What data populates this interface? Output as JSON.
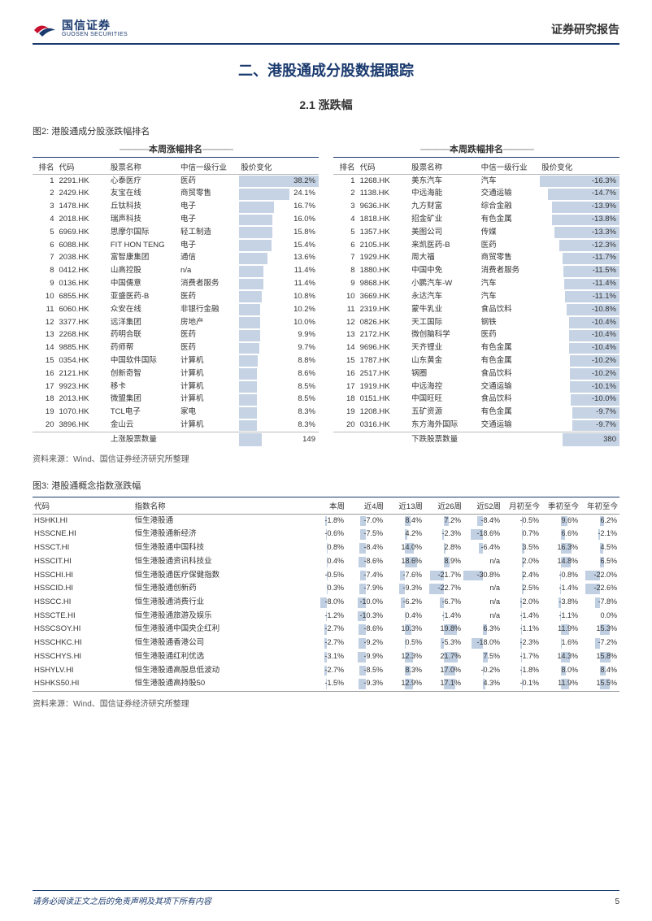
{
  "header": {
    "logo_cn": "国信证券",
    "logo_en": "GUOSEN SECURITIES",
    "report_type": "证券研究报告"
  },
  "section_title": "二、港股通成分股数据跟踪",
  "subsection_title": "2.1 涨跌幅",
  "figure2": {
    "title": "图2: 港股通成分股涨跌幅排名",
    "source": "资料来源：Wind、国信证券经济研究所整理",
    "gainers_header": "本周涨幅排名",
    "losers_header": "本周跌幅排名",
    "col_rank": "排名",
    "col_code": "代码",
    "col_name": "股票名称",
    "col_industry": "中信一级行业",
    "col_change": "股价变化",
    "gainers_count_label": "上涨股票数量",
    "gainers_count": "149",
    "losers_count_label": "下跌股票数量",
    "losers_count": "380",
    "bar_color": "rgba(90,130,180,0.35)",
    "gainer_max": 38.2,
    "loser_max": 16.3,
    "gainers": [
      {
        "rank": "1",
        "code": "2291.HK",
        "name": "心泰医疗",
        "ind": "医药",
        "chg": "38.2%",
        "v": 38.2
      },
      {
        "rank": "2",
        "code": "2429.HK",
        "name": "友宝在线",
        "ind": "商贸零售",
        "chg": "24.1%",
        "v": 24.1
      },
      {
        "rank": "3",
        "code": "1478.HK",
        "name": "丘钛科技",
        "ind": "电子",
        "chg": "16.7%",
        "v": 16.7
      },
      {
        "rank": "4",
        "code": "2018.HK",
        "name": "瑞声科技",
        "ind": "电子",
        "chg": "16.0%",
        "v": 16.0
      },
      {
        "rank": "5",
        "code": "6969.HK",
        "name": "思摩尔国际",
        "ind": "轻工制造",
        "chg": "15.8%",
        "v": 15.8
      },
      {
        "rank": "6",
        "code": "6088.HK",
        "name": "FIT HON TENG",
        "ind": "电子",
        "chg": "15.4%",
        "v": 15.4
      },
      {
        "rank": "7",
        "code": "2038.HK",
        "name": "富智康集团",
        "ind": "通信",
        "chg": "13.6%",
        "v": 13.6
      },
      {
        "rank": "8",
        "code": "0412.HK",
        "name": "山高控股",
        "ind": "n/a",
        "chg": "11.4%",
        "v": 11.4
      },
      {
        "rank": "9",
        "code": "0136.HK",
        "name": "中国儒意",
        "ind": "消费者服务",
        "chg": "11.4%",
        "v": 11.4
      },
      {
        "rank": "10",
        "code": "6855.HK",
        "name": "亚盛医药-B",
        "ind": "医药",
        "chg": "10.8%",
        "v": 10.8
      },
      {
        "rank": "11",
        "code": "6060.HK",
        "name": "众安在线",
        "ind": "非银行金融",
        "chg": "10.2%",
        "v": 10.2
      },
      {
        "rank": "12",
        "code": "3377.HK",
        "name": "远洋集团",
        "ind": "房地产",
        "chg": "10.0%",
        "v": 10.0
      },
      {
        "rank": "13",
        "code": "2268.HK",
        "name": "药明合联",
        "ind": "医药",
        "chg": "9.9%",
        "v": 9.9
      },
      {
        "rank": "14",
        "code": "9885.HK",
        "name": "药师帮",
        "ind": "医药",
        "chg": "9.7%",
        "v": 9.7
      },
      {
        "rank": "15",
        "code": "0354.HK",
        "name": "中国软件国际",
        "ind": "计算机",
        "chg": "8.8%",
        "v": 8.8
      },
      {
        "rank": "16",
        "code": "2121.HK",
        "name": "创新奇智",
        "ind": "计算机",
        "chg": "8.6%",
        "v": 8.6
      },
      {
        "rank": "17",
        "code": "9923.HK",
        "name": "移卡",
        "ind": "计算机",
        "chg": "8.5%",
        "v": 8.5
      },
      {
        "rank": "18",
        "code": "2013.HK",
        "name": "微盟集团",
        "ind": "计算机",
        "chg": "8.5%",
        "v": 8.5
      },
      {
        "rank": "19",
        "code": "1070.HK",
        "name": "TCL电子",
        "ind": "家电",
        "chg": "8.3%",
        "v": 8.3
      },
      {
        "rank": "20",
        "code": "3896.HK",
        "name": "金山云",
        "ind": "计算机",
        "chg": "8.3%",
        "v": 8.3
      }
    ],
    "losers": [
      {
        "rank": "1",
        "code": "1268.HK",
        "name": "美东汽车",
        "ind": "汽车",
        "chg": "-16.3%",
        "v": 16.3
      },
      {
        "rank": "2",
        "code": "1138.HK",
        "name": "中远海能",
        "ind": "交通运输",
        "chg": "-14.7%",
        "v": 14.7
      },
      {
        "rank": "3",
        "code": "9636.HK",
        "name": "九方财富",
        "ind": "综合金融",
        "chg": "-13.9%",
        "v": 13.9
      },
      {
        "rank": "4",
        "code": "1818.HK",
        "name": "招金矿业",
        "ind": "有色金属",
        "chg": "-13.8%",
        "v": 13.8
      },
      {
        "rank": "5",
        "code": "1357.HK",
        "name": "美图公司",
        "ind": "传媒",
        "chg": "-13.3%",
        "v": 13.3
      },
      {
        "rank": "6",
        "code": "2105.HK",
        "name": "来凯医药-B",
        "ind": "医药",
        "chg": "-12.3%",
        "v": 12.3
      },
      {
        "rank": "7",
        "code": "1929.HK",
        "name": "周大福",
        "ind": "商贸零售",
        "chg": "-11.7%",
        "v": 11.7
      },
      {
        "rank": "8",
        "code": "1880.HK",
        "name": "中国中免",
        "ind": "消费者服务",
        "chg": "-11.5%",
        "v": 11.5
      },
      {
        "rank": "9",
        "code": "9868.HK",
        "name": "小鹏汽车-W",
        "ind": "汽车",
        "chg": "-11.4%",
        "v": 11.4
      },
      {
        "rank": "10",
        "code": "3669.HK",
        "name": "永达汽车",
        "ind": "汽车",
        "chg": "-11.1%",
        "v": 11.1
      },
      {
        "rank": "11",
        "code": "2319.HK",
        "name": "蒙牛乳业",
        "ind": "食品饮料",
        "chg": "-10.8%",
        "v": 10.8
      },
      {
        "rank": "12",
        "code": "0826.HK",
        "name": "天工国际",
        "ind": "钢铁",
        "chg": "-10.4%",
        "v": 10.4
      },
      {
        "rank": "13",
        "code": "2172.HK",
        "name": "微创脑科学",
        "ind": "医药",
        "chg": "-10.4%",
        "v": 10.4
      },
      {
        "rank": "14",
        "code": "9696.HK",
        "name": "天齐锂业",
        "ind": "有色金属",
        "chg": "-10.4%",
        "v": 10.4
      },
      {
        "rank": "15",
        "code": "1787.HK",
        "name": "山东黄金",
        "ind": "有色金属",
        "chg": "-10.2%",
        "v": 10.2
      },
      {
        "rank": "16",
        "code": "2517.HK",
        "name": "锅圈",
        "ind": "食品饮料",
        "chg": "-10.2%",
        "v": 10.2
      },
      {
        "rank": "17",
        "code": "1919.HK",
        "name": "中远海控",
        "ind": "交通运输",
        "chg": "-10.1%",
        "v": 10.1
      },
      {
        "rank": "18",
        "code": "0151.HK",
        "name": "中国旺旺",
        "ind": "食品饮料",
        "chg": "-10.0%",
        "v": 10.0
      },
      {
        "rank": "19",
        "code": "1208.HK",
        "name": "五矿资源",
        "ind": "有色金属",
        "chg": "-9.7%",
        "v": 9.7
      },
      {
        "rank": "20",
        "code": "0316.HK",
        "name": "东方海外国际",
        "ind": "交通运输",
        "chg": "-9.7%",
        "v": 9.7
      }
    ]
  },
  "figure3": {
    "title": "图3: 港股通概念指数涨跌幅",
    "source": "资料来源：Wind、国信证券经济研究所整理",
    "columns": [
      "代码",
      "指数名称",
      "本周",
      "近4周",
      "近13周",
      "近26周",
      "近52周",
      "月初至今",
      "季初至今",
      "年初至今"
    ],
    "col_ranges": [
      24,
      24,
      30,
      30,
      30,
      30,
      30,
      30
    ],
    "rows": [
      {
        "code": "HSHKI.HI",
        "name": "恒生港股通",
        "v": [
          -1.8,
          -7.0,
          8.4,
          7.2,
          -8.4,
          -0.5,
          9.6,
          6.2
        ]
      },
      {
        "code": "HSSCNE.HI",
        "name": "恒生港股通新经济",
        "v": [
          -0.6,
          -7.5,
          4.2,
          -2.3,
          -18.6,
          0.7,
          6.6,
          -2.1
        ]
      },
      {
        "code": "HSSCT.HI",
        "name": "恒生港股通中国科技",
        "v": [
          0.8,
          -8.4,
          14.0,
          2.8,
          -6.4,
          3.5,
          16.3,
          4.5
        ]
      },
      {
        "code": "HSSCIT.HI",
        "name": "恒生港股通资讯科技业",
        "v": [
          0.4,
          -8.6,
          18.6,
          8.9,
          null,
          2.0,
          14.8,
          6.5
        ]
      },
      {
        "code": "HSSCHI.HI",
        "name": "恒生港股通医疗保健指数",
        "v": [
          -0.5,
          -7.4,
          -7.6,
          -21.7,
          -30.8,
          2.4,
          -0.8,
          -22.0
        ]
      },
      {
        "code": "HSSCID.HI",
        "name": "恒生港股通创新药",
        "v": [
          0.3,
          -7.9,
          -9.3,
          -22.7,
          null,
          2.5,
          -1.4,
          -22.6
        ]
      },
      {
        "code": "HSSCC.HI",
        "name": "恒生港股通消费行业",
        "v": [
          -8.0,
          -10.0,
          -6.2,
          -6.7,
          null,
          -2.0,
          -3.8,
          -7.8
        ]
      },
      {
        "code": "HSSCTE.HI",
        "name": "恒生港股通旅游及娱乐",
        "v": [
          -1.2,
          -10.3,
          0.4,
          -1.4,
          null,
          -1.4,
          -1.1,
          0.0
        ]
      },
      {
        "code": "HSSCSOY.HI",
        "name": "恒生港股通中国央企红利",
        "v": [
          -2.7,
          -8.6,
          10.3,
          19.8,
          6.3,
          -1.1,
          11.9,
          15.3
        ]
      },
      {
        "code": "HSSCHKC.HI",
        "name": "恒生港股通香港公司",
        "v": [
          -2.7,
          -9.2,
          0.5,
          -5.3,
          -18.0,
          -2.3,
          1.6,
          -7.2
        ]
      },
      {
        "code": "HSSCHYS.HI",
        "name": "恒生港股通红利优选",
        "v": [
          -3.1,
          -9.9,
          12.3,
          21.7,
          7.5,
          -1.7,
          14.3,
          15.8
        ]
      },
      {
        "code": "HSHYLV.HI",
        "name": "恒生港股通高股息低波动",
        "v": [
          -2.7,
          -8.5,
          8.3,
          17.0,
          -0.2,
          -1.8,
          8.0,
          8.4
        ]
      },
      {
        "code": "HSHKS50.HI",
        "name": "恒生港股通高持股50",
        "v": [
          -1.5,
          -9.3,
          12.9,
          17.1,
          4.3,
          -0.1,
          11.9,
          15.5
        ]
      }
    ]
  },
  "footer": {
    "disclaimer": "请务必阅读正文之后的免责声明及其项下所有内容",
    "page": "5"
  }
}
